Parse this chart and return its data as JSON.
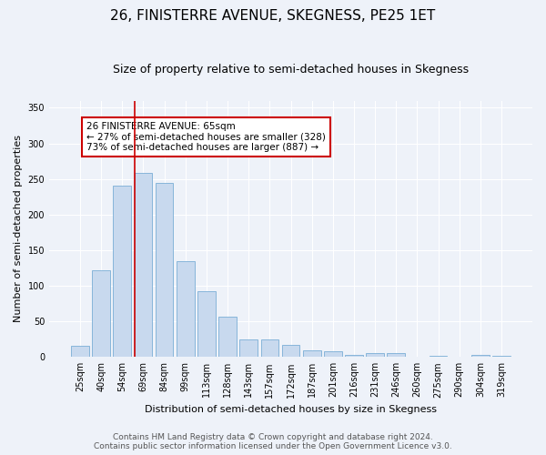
{
  "title": "26, FINISTERRE AVENUE, SKEGNESS, PE25 1ET",
  "subtitle": "Size of property relative to semi-detached houses in Skegness",
  "xlabel": "Distribution of semi-detached houses by size in Skegness",
  "ylabel": "Number of semi-detached properties",
  "categories": [
    "25sqm",
    "40sqm",
    "54sqm",
    "69sqm",
    "84sqm",
    "99sqm",
    "113sqm",
    "128sqm",
    "143sqm",
    "157sqm",
    "172sqm",
    "187sqm",
    "201sqm",
    "216sqm",
    "231sqm",
    "246sqm",
    "260sqm",
    "275sqm",
    "290sqm",
    "304sqm",
    "319sqm"
  ],
  "values": [
    16,
    122,
    240,
    258,
    245,
    135,
    93,
    57,
    25,
    25,
    17,
    9,
    8,
    3,
    5,
    5,
    1,
    2,
    0,
    3,
    2
  ],
  "bar_color": "#c8d9ee",
  "bar_edge_color": "#7aaed6",
  "vline_color": "#cc0000",
  "annotation_line1": "26 FINISTERRE AVENUE: 65sqm",
  "annotation_line2": "← 27% of semi-detached houses are smaller (328)",
  "annotation_line3": "73% of semi-detached houses are larger (887) →",
  "box_facecolor": "#ffffff",
  "box_edgecolor": "#cc0000",
  "ylim": [
    0,
    360
  ],
  "yticks": [
    0,
    50,
    100,
    150,
    200,
    250,
    300,
    350
  ],
  "footer_line1": "Contains HM Land Registry data © Crown copyright and database right 2024.",
  "footer_line2": "Contains public sector information licensed under the Open Government Licence v3.0.",
  "title_fontsize": 11,
  "subtitle_fontsize": 9,
  "xlabel_fontsize": 8,
  "ylabel_fontsize": 8,
  "tick_fontsize": 7,
  "annotation_fontsize": 7.5,
  "footer_fontsize": 6.5,
  "background_color": "#eef2f9",
  "grid_color": "#ffffff"
}
